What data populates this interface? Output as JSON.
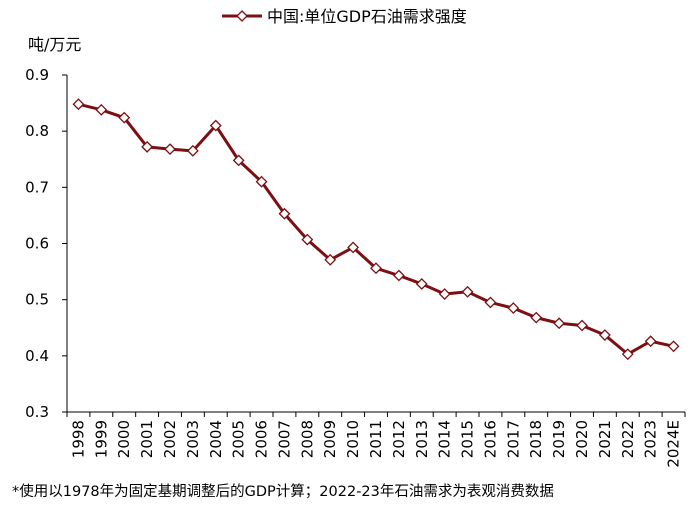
{
  "chart_data": {
    "type": "line",
    "ylabel": "吨/万元",
    "ylim": [
      0.3,
      0.9
    ],
    "yticks": [
      "0.3",
      "0.4",
      "0.5",
      "0.6",
      "0.7",
      "0.8",
      "0.9"
    ],
    "grid": false,
    "legend_position": "top",
    "categories": [
      "1998",
      "1999",
      "2000",
      "2001",
      "2002",
      "2003",
      "2004",
      "2005",
      "2006",
      "2007",
      "2008",
      "2009",
      "2010",
      "2011",
      "2012",
      "2013",
      "2014",
      "2015",
      "2016",
      "2017",
      "2018",
      "2019",
      "2020",
      "2021",
      "2022",
      "2023",
      "2024E"
    ],
    "series": [
      {
        "name": "中国:单位GDP石油需求强度",
        "color": "#7b0f12",
        "marker": "diamond",
        "values": [
          0.848,
          0.838,
          0.824,
          0.772,
          0.768,
          0.765,
          0.81,
          0.748,
          0.71,
          0.653,
          0.607,
          0.571,
          0.593,
          0.556,
          0.543,
          0.528,
          0.51,
          0.514,
          0.495,
          0.485,
          0.468,
          0.458,
          0.454,
          0.437,
          0.403,
          0.426,
          0.417
        ]
      }
    ]
  },
  "footnote": "*使用以1978年为固定基期调整后的GDP计算；2022-23年石油需求为表观消费数据"
}
